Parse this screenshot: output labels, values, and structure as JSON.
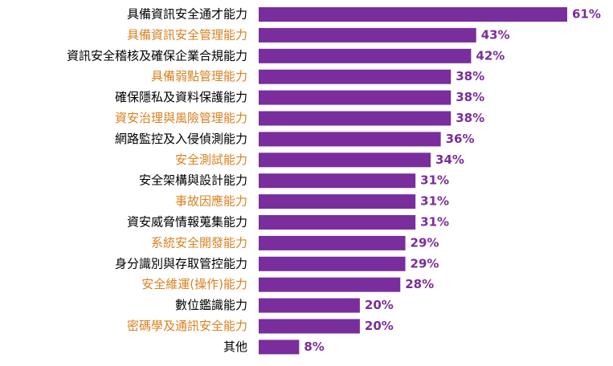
{
  "chart_data": {
    "type": "barh",
    "categories": [
      "具備資訊安全通才能力",
      "具備資訊安全管理能力",
      "資訊安全稽核及確保企業合規能力",
      "具備弱點管理能力",
      "確保隱私及資料保護能力",
      "資安治理與風險管理能力",
      "網路監控及入侵偵測能力",
      "安全測試能力",
      "安全架構與設計能力",
      "事故因應能力",
      "資安威脅情報蒐集能力",
      "系統安全開發能力",
      "身分識別與存取管控能力",
      "安全維運(操作)能力",
      "數位鑑識能力",
      "密碼學及通訊安全能力",
      "其他"
    ],
    "values": [
      61,
      43,
      42,
      38,
      38,
      38,
      36,
      34,
      31,
      31,
      31,
      29,
      29,
      28,
      20,
      20,
      8
    ],
    "value_labels": [
      "61%",
      "43%",
      "42%",
      "38%",
      "38%",
      "38%",
      "36%",
      "34%",
      "31%",
      "31%",
      "31%",
      "29%",
      "29%",
      "28%",
      "20%",
      "20%",
      "8%"
    ],
    "color": "#7a2d9c",
    "category_colors": [
      "#000000",
      "#d9801f",
      "#000000",
      "#d9801f",
      "#000000",
      "#d9801f",
      "#000000",
      "#d9801f",
      "#000000",
      "#d9801f",
      "#000000",
      "#d9801f",
      "#000000",
      "#d9801f",
      "#000000",
      "#d9801f",
      "#000000"
    ]
  }
}
